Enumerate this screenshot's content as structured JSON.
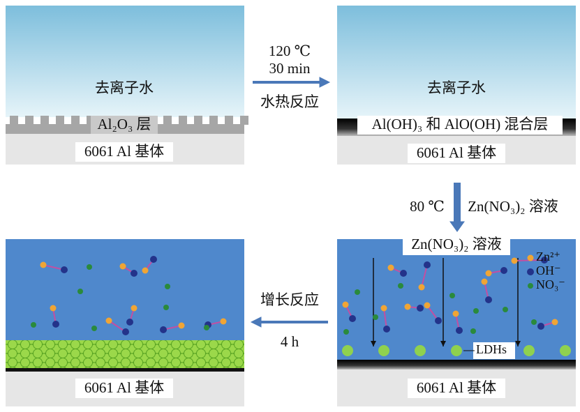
{
  "panels": [
    {
      "water_label": "去离子水",
      "layer_label": "Al₂O₃ 层",
      "substrate_label": "6061 Al 基体"
    },
    {
      "water_label": "去离子水",
      "layer_label": "Al(OH)₃ 和 AlO(OH) 混合层",
      "substrate_label": "6061 Al 基体"
    },
    {
      "solution_label": "Zn(NO₃)₂ 溶液",
      "legend": [
        "Zn²⁺",
        "OH⁻",
        "NO₃⁻"
      ],
      "product_label": "LDHs",
      "substrate_label": "6061 Al 基体"
    },
    {
      "substrate_label": "6061 Al 基体"
    }
  ],
  "steps": [
    {
      "lines": [
        "120 ℃",
        "30 min",
        "水热反应"
      ]
    },
    {
      "lines": [
        "80 ℃",
        "Zn(NO₃)₂ 溶液"
      ]
    },
    {
      "lines": [
        "增长反应",
        "4 h"
      ]
    }
  ]
}
